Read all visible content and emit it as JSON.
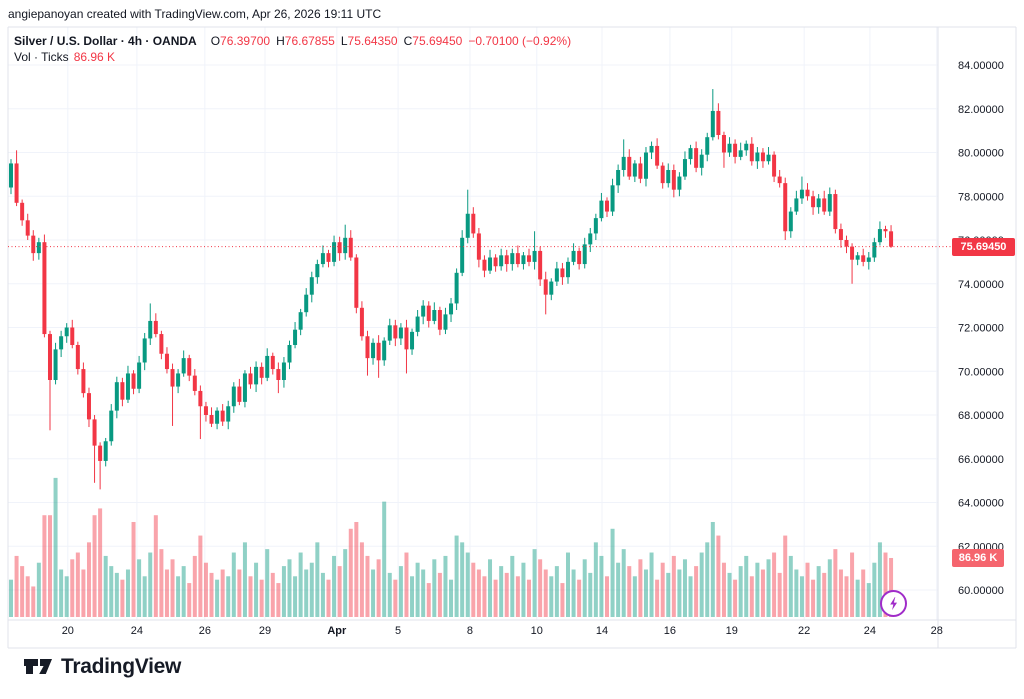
{
  "attribution": "angiepanoyan created with TradingView.com, Apr 26, 2026 19:11 UTC",
  "legend": {
    "symbol": "Silver / U.S. Dollar · 4h · OANDA",
    "items": [
      {
        "label": "O",
        "value": "76.39700"
      },
      {
        "label": "H",
        "value": "76.67855"
      },
      {
        "label": "L",
        "value": "75.64350"
      },
      {
        "label": "C",
        "value": "75.69450"
      }
    ],
    "change": "−0.70100 (−0.92%)",
    "vol_label": "Vol · Ticks",
    "vol_value": "86.96 K"
  },
  "price_axis": {
    "price_badge": "75.69450",
    "volume_badge": "86.96 K"
  },
  "logo": {
    "text": "TradingView"
  },
  "icons": {
    "lightning": "lightning-bolt"
  },
  "colors": {
    "up": "#089981",
    "down": "#f23645",
    "vol_up": "rgba(8,153,129,0.45)",
    "vol_down": "rgba(242,54,69,0.45)",
    "grid": "#f0f3fa",
    "frame": "#e0e3eb",
    "text": "#131722",
    "badge_price": "#f23645",
    "badge_vol": "#f5656e",
    "flash": "#a02cc9"
  },
  "chart_data": {
    "type": "candlestick+volume",
    "symbol": "Silver / U.S. Dollar",
    "timeframe": "4h",
    "exchange": "OANDA",
    "last_bar": {
      "open": 76.397,
      "high": 76.67855,
      "low": 75.6435,
      "close": 75.6945,
      "change": -0.701,
      "change_pct": -0.92
    },
    "last_price": 75.6945,
    "last_volume_k": 86.96,
    "y_axis": {
      "ticks": [
        {
          "price": 84,
          "label": "84.00000"
        },
        {
          "price": 82,
          "label": "82.00000"
        },
        {
          "price": 80,
          "label": "80.00000"
        },
        {
          "price": 78,
          "label": "78.00000"
        },
        {
          "price": 76,
          "label": "76.00000"
        },
        {
          "price": 74,
          "label": "74.00000"
        },
        {
          "price": 72,
          "label": "72.00000"
        },
        {
          "price": 70,
          "label": "70.00000"
        },
        {
          "price": 68,
          "label": "68.00000"
        },
        {
          "price": 66,
          "label": "66.00000"
        },
        {
          "price": 64,
          "label": "64.00000"
        },
        {
          "price": 62,
          "label": "62.00000"
        },
        {
          "price": 60,
          "label": "60.00000"
        }
      ],
      "grid": true
    },
    "x_axis": {
      "labels": [
        {
          "label": "20",
          "bar": 10.2,
          "bold": false
        },
        {
          "label": "24",
          "bar": 22.6,
          "bold": false
        },
        {
          "label": "26",
          "bar": 34.8,
          "bold": false
        },
        {
          "label": "29",
          "bar": 45.6,
          "bold": false
        },
        {
          "label": "Apr",
          "bar": 58.5,
          "bold": true
        },
        {
          "label": "5",
          "bar": 69.5,
          "bold": false
        },
        {
          "label": "8",
          "bar": 82.4,
          "bold": false
        },
        {
          "label": "10",
          "bar": 94.4,
          "bold": false
        },
        {
          "label": "14",
          "bar": 106.1,
          "bold": false
        },
        {
          "label": "16",
          "bar": 118.3,
          "bold": false
        },
        {
          "label": "19",
          "bar": 129.4,
          "bold": false
        },
        {
          "label": "22",
          "bar": 142.4,
          "bold": false
        },
        {
          "label": "24",
          "bar": 154.2,
          "bold": false
        },
        {
          "label": "28",
          "bar": 166.2,
          "bold": false
        }
      ],
      "grid": true
    },
    "bars_format": [
      "open",
      "high",
      "low",
      "close",
      "volume_k"
    ],
    "bars": [
      [
        78.4,
        79.7,
        78.1,
        79.5,
        55
      ],
      [
        79.5,
        80.1,
        77.55,
        77.7,
        90
      ],
      [
        77.7,
        77.85,
        76.65,
        76.9,
        75
      ],
      [
        76.9,
        77.2,
        76.0,
        76.2,
        60
      ],
      [
        76.2,
        76.45,
        75.05,
        75.4,
        45
      ],
      [
        75.4,
        76.1,
        75.1,
        75.9,
        80
      ],
      [
        75.9,
        76.25,
        71.55,
        71.7,
        150
      ],
      [
        71.7,
        71.85,
        67.3,
        69.6,
        150
      ],
      [
        69.6,
        71.3,
        69.4,
        71.0,
        205
      ],
      [
        71.0,
        71.85,
        70.65,
        71.6,
        70
      ],
      [
        71.6,
        72.2,
        71.3,
        72.0,
        60
      ],
      [
        72.0,
        72.35,
        71.05,
        71.2,
        85
      ],
      [
        71.2,
        71.35,
        69.85,
        70.1,
        95
      ],
      [
        70.1,
        70.4,
        68.8,
        69.0,
        70
      ],
      [
        69.0,
        69.25,
        67.45,
        67.8,
        110
      ],
      [
        67.8,
        68.0,
        64.9,
        66.6,
        150
      ],
      [
        66.6,
        66.75,
        64.6,
        65.9,
        160
      ],
      [
        65.9,
        66.95,
        65.65,
        66.8,
        90
      ],
      [
        66.8,
        68.5,
        66.6,
        68.2,
        75
      ],
      [
        68.2,
        69.75,
        67.85,
        69.5,
        65
      ],
      [
        69.5,
        69.7,
        68.4,
        68.7,
        55
      ],
      [
        68.7,
        70.25,
        68.55,
        69.9,
        70
      ],
      [
        69.9,
        70.05,
        68.95,
        69.2,
        140
      ],
      [
        69.2,
        70.7,
        69.0,
        70.4,
        85
      ],
      [
        70.4,
        71.75,
        70.05,
        71.5,
        60
      ],
      [
        71.5,
        73.1,
        71.2,
        72.3,
        95
      ],
      [
        72.3,
        72.65,
        71.55,
        71.7,
        150
      ],
      [
        71.7,
        71.85,
        70.55,
        70.8,
        100
      ],
      [
        70.8,
        71.1,
        69.9,
        70.1,
        70
      ],
      [
        70.1,
        70.35,
        67.5,
        69.3,
        85
      ],
      [
        69.3,
        70.1,
        69.0,
        69.9,
        60
      ],
      [
        69.9,
        70.95,
        69.75,
        70.6,
        75
      ],
      [
        70.6,
        70.75,
        69.55,
        69.8,
        50
      ],
      [
        69.8,
        70.1,
        68.9,
        69.1,
        90
      ],
      [
        69.1,
        69.35,
        66.9,
        68.4,
        120
      ],
      [
        68.4,
        68.6,
        67.7,
        68.0,
        80
      ],
      [
        68.0,
        68.35,
        67.45,
        67.6,
        65
      ],
      [
        67.6,
        68.35,
        67.35,
        68.2,
        55
      ],
      [
        68.2,
        68.5,
        67.5,
        67.7,
        70
      ],
      [
        67.7,
        68.65,
        67.35,
        68.4,
        60
      ],
      [
        68.4,
        69.5,
        68.1,
        69.3,
        95
      ],
      [
        69.3,
        69.65,
        68.45,
        68.6,
        70
      ],
      [
        68.6,
        70.05,
        68.35,
        69.9,
        110
      ],
      [
        69.9,
        70.2,
        69.2,
        69.4,
        60
      ],
      [
        69.4,
        70.45,
        69.05,
        70.2,
        80
      ],
      [
        70.2,
        70.4,
        69.4,
        69.7,
        55
      ],
      [
        69.7,
        71.05,
        69.55,
        70.7,
        100
      ],
      [
        70.7,
        70.85,
        69.85,
        70.1,
        65
      ],
      [
        70.1,
        70.4,
        69.0,
        69.6,
        50
      ],
      [
        69.6,
        70.65,
        69.25,
        70.4,
        75
      ],
      [
        70.4,
        71.4,
        70.1,
        71.2,
        85
      ],
      [
        71.2,
        72.25,
        71.05,
        71.9,
        60
      ],
      [
        71.9,
        72.85,
        71.65,
        72.7,
        95
      ],
      [
        72.7,
        73.8,
        72.5,
        73.5,
        70
      ],
      [
        73.5,
        74.55,
        73.15,
        74.3,
        80
      ],
      [
        74.3,
        75.1,
        74.0,
        74.9,
        110
      ],
      [
        74.9,
        75.75,
        74.75,
        75.4,
        65
      ],
      [
        75.4,
        75.55,
        74.75,
        75.0,
        55
      ],
      [
        75.0,
        76.2,
        74.8,
        75.9,
        90
      ],
      [
        75.9,
        76.15,
        75.05,
        75.4,
        75
      ],
      [
        75.4,
        76.7,
        75.1,
        76.1,
        100
      ],
      [
        76.1,
        76.45,
        75.05,
        75.2,
        130
      ],
      [
        75.2,
        75.35,
        72.65,
        72.9,
        140
      ],
      [
        72.9,
        73.2,
        71.4,
        71.6,
        110
      ],
      [
        71.6,
        71.85,
        69.8,
        70.6,
        90
      ],
      [
        70.6,
        71.5,
        70.3,
        71.3,
        70
      ],
      [
        71.3,
        71.65,
        69.7,
        70.5,
        85
      ],
      [
        70.5,
        71.55,
        70.25,
        71.4,
        170
      ],
      [
        71.4,
        72.4,
        71.2,
        72.1,
        65
      ],
      [
        72.1,
        72.35,
        71.15,
        71.5,
        55
      ],
      [
        71.5,
        72.2,
        71.2,
        72.0,
        75
      ],
      [
        72.0,
        72.35,
        69.9,
        71.0,
        95
      ],
      [
        71.0,
        71.95,
        70.75,
        71.8,
        60
      ],
      [
        71.8,
        72.8,
        71.6,
        72.5,
        80
      ],
      [
        72.5,
        73.25,
        72.15,
        73.0,
        70
      ],
      [
        73.0,
        73.2,
        72.0,
        72.3,
        50
      ],
      [
        72.3,
        73.15,
        72.15,
        72.8,
        85
      ],
      [
        72.8,
        72.95,
        71.65,
        71.9,
        65
      ],
      [
        71.9,
        72.9,
        71.7,
        72.6,
        90
      ],
      [
        72.6,
        73.35,
        72.25,
        73.1,
        55
      ],
      [
        73.1,
        74.7,
        72.8,
        74.5,
        120
      ],
      [
        74.5,
        76.45,
        74.35,
        76.1,
        110
      ],
      [
        76.1,
        78.3,
        75.85,
        77.2,
        95
      ],
      [
        77.2,
        77.5,
        76.1,
        76.3,
        80
      ],
      [
        76.3,
        76.55,
        74.75,
        75.1,
        70
      ],
      [
        75.1,
        75.3,
        74.3,
        74.6,
        60
      ],
      [
        74.6,
        75.55,
        74.45,
        75.2,
        85
      ],
      [
        75.2,
        75.35,
        74.55,
        74.8,
        55
      ],
      [
        74.8,
        75.6,
        74.6,
        75.3,
        75
      ],
      [
        75.3,
        75.55,
        74.55,
        74.9,
        65
      ],
      [
        74.9,
        75.6,
        74.6,
        75.4,
        90
      ],
      [
        75.4,
        75.75,
        74.75,
        74.9,
        60
      ],
      [
        74.9,
        75.45,
        74.65,
        75.3,
        80
      ],
      [
        75.3,
        75.6,
        74.8,
        75.0,
        55
      ],
      [
        75.0,
        76.4,
        74.65,
        75.5,
        100
      ],
      [
        75.5,
        75.7,
        73.9,
        74.2,
        85
      ],
      [
        74.2,
        74.55,
        72.6,
        73.5,
        70
      ],
      [
        73.5,
        74.25,
        73.25,
        74.1,
        60
      ],
      [
        74.1,
        75.0,
        73.9,
        74.7,
        75
      ],
      [
        74.7,
        74.95,
        73.95,
        74.3,
        50
      ],
      [
        74.3,
        75.2,
        74.0,
        75.0,
        95
      ],
      [
        75.0,
        75.85,
        74.85,
        75.5,
        70
      ],
      [
        75.5,
        75.65,
        74.65,
        74.9,
        55
      ],
      [
        74.9,
        76.1,
        74.7,
        75.8,
        85
      ],
      [
        75.8,
        76.55,
        75.45,
        76.3,
        65
      ],
      [
        76.3,
        77.2,
        76.0,
        77.0,
        110
      ],
      [
        77.0,
        78.15,
        76.85,
        77.8,
        90
      ],
      [
        77.8,
        77.95,
        77.05,
        77.3,
        60
      ],
      [
        77.3,
        78.8,
        77.1,
        78.5,
        130
      ],
      [
        78.5,
        79.45,
        78.15,
        79.2,
        80
      ],
      [
        79.2,
        80.6,
        78.9,
        79.8,
        100
      ],
      [
        79.8,
        80.15,
        78.75,
        78.9,
        75
      ],
      [
        78.9,
        79.65,
        78.65,
        79.5,
        60
      ],
      [
        79.5,
        79.8,
        78.6,
        78.8,
        85
      ],
      [
        78.8,
        80.25,
        78.45,
        80.0,
        70
      ],
      [
        80.0,
        80.5,
        79.7,
        80.3,
        95
      ],
      [
        80.3,
        80.65,
        79.25,
        79.4,
        55
      ],
      [
        79.4,
        79.55,
        78.35,
        78.6,
        80
      ],
      [
        78.6,
        79.5,
        78.4,
        79.2,
        65
      ],
      [
        79.2,
        79.45,
        77.95,
        78.3,
        90
      ],
      [
        78.3,
        79.1,
        78.0,
        78.9,
        70
      ],
      [
        78.9,
        80.05,
        78.75,
        79.7,
        85
      ],
      [
        79.7,
        80.35,
        79.45,
        80.2,
        60
      ],
      [
        80.2,
        80.5,
        79.1,
        79.3,
        75
      ],
      [
        79.3,
        80.15,
        78.95,
        79.9,
        95
      ],
      [
        79.9,
        80.9,
        79.6,
        80.7,
        110
      ],
      [
        80.7,
        82.9,
        80.55,
        81.9,
        140
      ],
      [
        81.9,
        82.25,
        80.6,
        80.8,
        120
      ],
      [
        80.8,
        80.95,
        79.3,
        80.0,
        80
      ],
      [
        80.0,
        80.7,
        79.8,
        80.4,
        65
      ],
      [
        80.4,
        80.6,
        79.5,
        79.8,
        55
      ],
      [
        79.8,
        80.45,
        79.65,
        80.1,
        75
      ],
      [
        80.1,
        80.55,
        79.85,
        80.4,
        90
      ],
      [
        80.4,
        80.7,
        79.4,
        79.6,
        60
      ],
      [
        79.6,
        80.25,
        79.25,
        80.0,
        80
      ],
      [
        80.0,
        80.2,
        79.3,
        79.6,
        70
      ],
      [
        79.6,
        80.25,
        79.45,
        79.9,
        85
      ],
      [
        79.9,
        80.05,
        78.65,
        78.9,
        95
      ],
      [
        78.9,
        79.2,
        78.4,
        78.6,
        65
      ],
      [
        78.6,
        78.85,
        76.0,
        76.4,
        120
      ],
      [
        76.4,
        77.5,
        76.1,
        77.3,
        90
      ],
      [
        77.3,
        78.25,
        77.15,
        77.9,
        70
      ],
      [
        77.9,
        78.9,
        77.65,
        78.3,
        60
      ],
      [
        78.3,
        78.6,
        77.8,
        78.0,
        80
      ],
      [
        78.0,
        78.25,
        77.15,
        77.5,
        55
      ],
      [
        77.5,
        78.1,
        77.2,
        77.9,
        75
      ],
      [
        77.9,
        78.25,
        77.15,
        77.3,
        65
      ],
      [
        77.3,
        78.4,
        77.1,
        78.1,
        85
      ],
      [
        78.1,
        78.3,
        76.3,
        76.5,
        100
      ],
      [
        76.5,
        76.75,
        75.65,
        76.0,
        70
      ],
      [
        76.0,
        76.2,
        75.4,
        75.7,
        60
      ],
      [
        75.7,
        75.85,
        74.0,
        75.1,
        95
      ],
      [
        75.1,
        75.45,
        74.85,
        75.3,
        55
      ],
      [
        75.3,
        75.6,
        74.8,
        75.0,
        70
      ],
      [
        75.0,
        75.45,
        74.65,
        75.2,
        50
      ],
      [
        75.2,
        76.1,
        75.0,
        75.9,
        80
      ],
      [
        75.9,
        76.85,
        75.75,
        76.5,
        110
      ],
      [
        76.5,
        76.65,
        76.1,
        76.4,
        95
      ],
      [
        76.397,
        76.67855,
        75.6435,
        75.6945,
        86.96
      ]
    ]
  }
}
